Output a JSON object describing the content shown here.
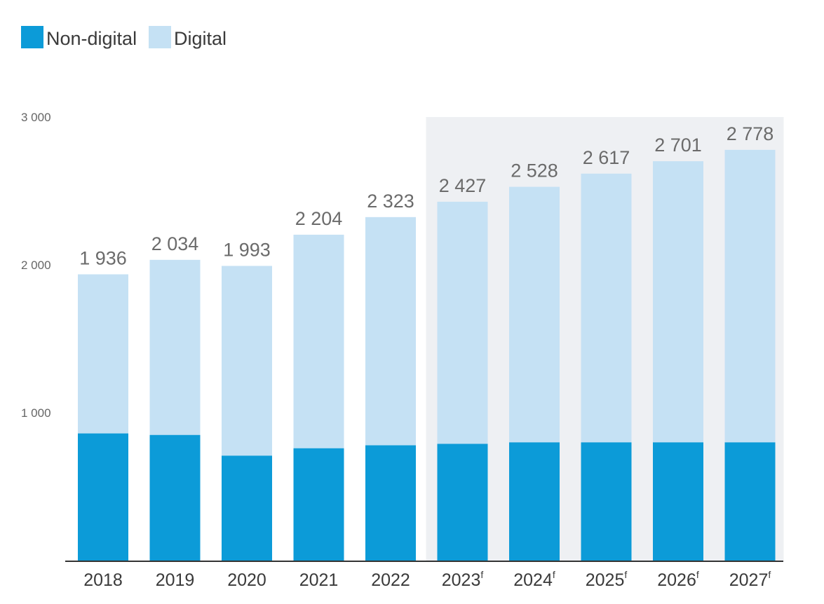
{
  "chart_data": {
    "type": "bar",
    "stacked": true,
    "title": "",
    "xlabel": "",
    "ylabel": "",
    "ylim": [
      0,
      3000
    ],
    "yticks": [
      1000,
      2000,
      3000
    ],
    "ytick_labels": [
      "1 000",
      "2 000",
      "3 000"
    ],
    "grid": false,
    "legend_position": "top-left",
    "categories": [
      "2018",
      "2019",
      "2020",
      "2021",
      "2022",
      "2023",
      "2024",
      "2025",
      "2026",
      "2027"
    ],
    "forecast_marker": "f",
    "forecast": [
      false,
      false,
      false,
      false,
      false,
      true,
      true,
      true,
      true,
      true
    ],
    "series": [
      {
        "name": "Non-digital",
        "color": "#0c9bd8",
        "values": [
          860,
          850,
          710,
          760,
          780,
          790,
          800,
          800,
          800,
          800
        ]
      },
      {
        "name": "Digital",
        "color": "#c5e1f4",
        "values": [
          1076,
          1184,
          1283,
          1444,
          1543,
          1637,
          1728,
          1817,
          1901,
          1978
        ]
      }
    ],
    "totals": [
      1936,
      2034,
      1993,
      2204,
      2323,
      2427,
      2528,
      2617,
      2701,
      2778
    ],
    "total_labels": [
      "1 936",
      "2 034",
      "1 993",
      "2 204",
      "2 323",
      "2 427",
      "2 528",
      "2 617",
      "2 701",
      "2 778"
    ],
    "forecast_shading_color": "#eef0f3",
    "axis_color": "#333333"
  }
}
